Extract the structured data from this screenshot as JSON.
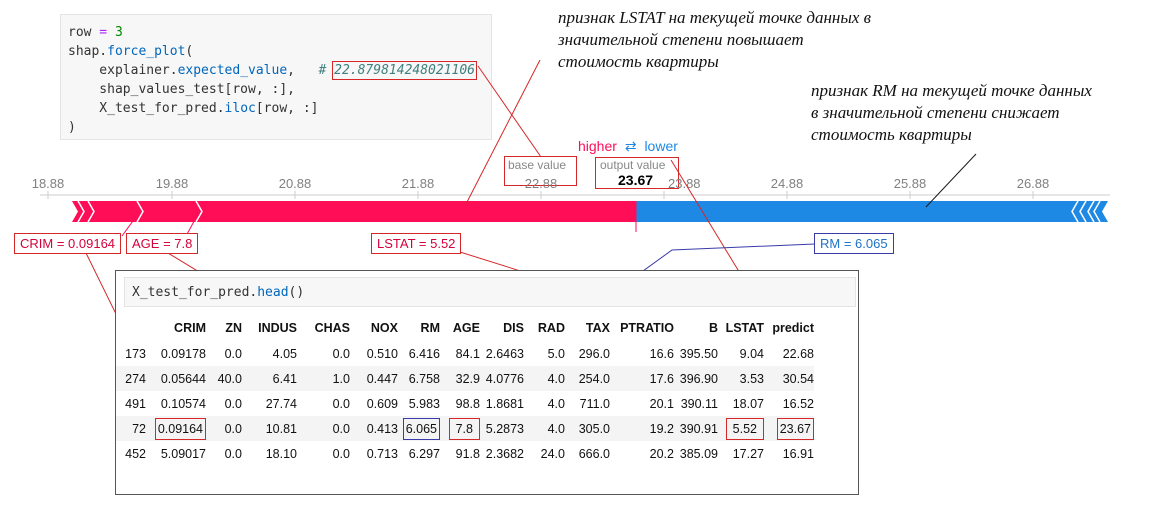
{
  "code_cell": {
    "line1_var": "row",
    "line1_op": " = ",
    "line1_val": "3",
    "line2_a": "shap.",
    "line2_fn": "force_plot",
    "line2_b": "(",
    "line3_a": "    explainer.",
    "line3_attr": "expected_value",
    "line3_b": ",   ",
    "line3_hash": "# ",
    "line3_comment": "22.879814248021106",
    "line4": "    shap_values_test[row, :],",
    "line5_a": "    X_test_for_pred.",
    "line5_fn": "iloc",
    "line5_b": "[row, :]",
    "line6": ")"
  },
  "annotations": {
    "lstat_lines": [
      "признак LSTAT на текущей точке данных в",
      "значительной степени повышает",
      "стоимость квартиры"
    ],
    "rm_lines": [
      "признак RM на текущей точке данных",
      "в значительной степени снижает",
      "стоимость квартиры"
    ]
  },
  "force_plot": {
    "higher_label": "higher",
    "arrows_label": "⇄",
    "lower_label": "lower",
    "base_value_label": "base value",
    "output_value_label": "output value",
    "output_value": "23.67",
    "ticks": [
      "18.88",
      "19.88",
      "20.88",
      "21.88",
      "22.88",
      "23.88",
      "24.88",
      "25.88",
      "26.88"
    ],
    "features": {
      "crim": "CRIM = 0.09164",
      "age": "AGE = 7.8",
      "lstat": "LSTAT = 5.52",
      "rm": "RM = 6.065"
    },
    "colors": {
      "positive": "#ff0d57",
      "negative": "#1e88e5",
      "highlight": "#d62728"
    }
  },
  "table_cell": {
    "code_a": "X_test_for_pred.",
    "code_fn": "head",
    "code_b": "()"
  },
  "dataframe": {
    "columns": [
      "CRIM",
      "ZN",
      "INDUS",
      "CHAS",
      "NOX",
      "RM",
      "AGE",
      "DIS",
      "RAD",
      "TAX",
      "PTRATIO",
      "B",
      "LSTAT",
      "predict"
    ],
    "rows": [
      {
        "index": "173",
        "values": [
          "0.09178",
          "0.0",
          "4.05",
          "0.0",
          "0.510",
          "6.416",
          "84.1",
          "2.6463",
          "5.0",
          "296.0",
          "16.6",
          "395.50",
          "9.04",
          "22.68"
        ]
      },
      {
        "index": "274",
        "values": [
          "0.05644",
          "40.0",
          "6.41",
          "1.0",
          "0.447",
          "6.758",
          "32.9",
          "4.0776",
          "4.0",
          "254.0",
          "17.6",
          "396.90",
          "3.53",
          "30.54"
        ]
      },
      {
        "index": "491",
        "values": [
          "0.10574",
          "0.0",
          "27.74",
          "0.0",
          "0.609",
          "5.983",
          "98.8",
          "1.8681",
          "4.0",
          "711.0",
          "20.1",
          "390.11",
          "18.07",
          "16.52"
        ]
      },
      {
        "index": "72",
        "values": [
          "0.09164",
          "0.0",
          "10.81",
          "0.0",
          "0.413",
          "6.065",
          "7.8",
          "5.2873",
          "4.0",
          "305.0",
          "19.2",
          "390.91",
          "5.52",
          "23.67"
        ]
      },
      {
        "index": "452",
        "values": [
          "5.09017",
          "0.0",
          "18.10",
          "0.0",
          "0.713",
          "6.297",
          "91.8",
          "2.3682",
          "24.0",
          "666.0",
          "20.2",
          "385.09",
          "17.27",
          "16.91"
        ]
      }
    ]
  }
}
